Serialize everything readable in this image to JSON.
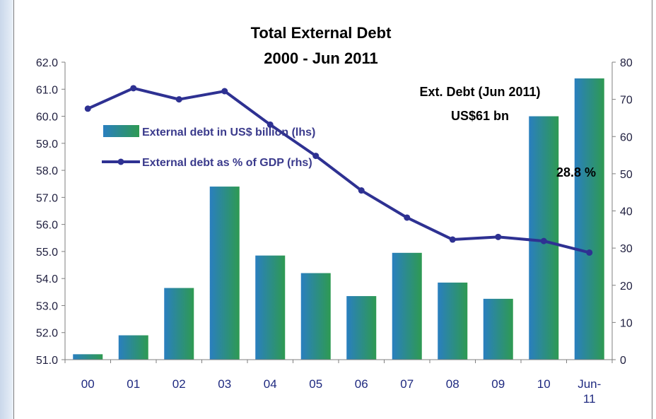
{
  "chart_data": {
    "type": "bar",
    "title": "Total External Debt",
    "subtitle": "2000 - Jun 2011",
    "categories": [
      "00",
      "01",
      "02",
      "03",
      "04",
      "05",
      "06",
      "07",
      "08",
      "09",
      "10",
      "Jun-11"
    ],
    "series": [
      {
        "name": "External debt in US$ billion (lhs)",
        "type": "bar",
        "axis": "left",
        "values": [
          51.2,
          51.9,
          53.65,
          57.4,
          54.85,
          54.2,
          53.35,
          54.95,
          53.85,
          53.25,
          60.0,
          61.4
        ]
      },
      {
        "name": "External debt as % of GDP (rhs)",
        "type": "line",
        "axis": "right",
        "values": [
          67.5,
          73,
          70,
          72.2,
          63.2,
          54.8,
          45.5,
          38.2,
          32.3,
          33,
          31.9,
          28.8
        ]
      }
    ],
    "y_left": {
      "min": 51.0,
      "max": 62.0,
      "step": 1.0,
      "ticks": [
        "51.0",
        "52.0",
        "53.0",
        "54.0",
        "55.0",
        "56.0",
        "57.0",
        "58.0",
        "59.0",
        "60.0",
        "61.0",
        "62.0"
      ]
    },
    "y_right": {
      "min": 0,
      "max": 80,
      "step": 10,
      "ticks": [
        "0",
        "10",
        "20",
        "30",
        "40",
        "50",
        "60",
        "70",
        "80"
      ]
    },
    "x_ticks": [
      [
        "00"
      ],
      [
        "01"
      ],
      [
        "02"
      ],
      [
        "03"
      ],
      [
        "04"
      ],
      [
        "05"
      ],
      [
        "06"
      ],
      [
        "07"
      ],
      [
        "08"
      ],
      [
        "09"
      ],
      [
        "10"
      ],
      [
        "Jun-",
        "11"
      ]
    ],
    "annotations": {
      "ext_debt_line1": "Ext. Debt (Jun 2011)",
      "ext_debt_line2": "US$61 bn",
      "pct_label": "28.8 %"
    },
    "grid": false,
    "legend_position": "upper-left inside plot",
    "colors": {
      "bar_left": "#2a7fbf",
      "bar_right": "#2e9a52",
      "line": "#2e3192",
      "axis": "#7f7f7f"
    }
  }
}
